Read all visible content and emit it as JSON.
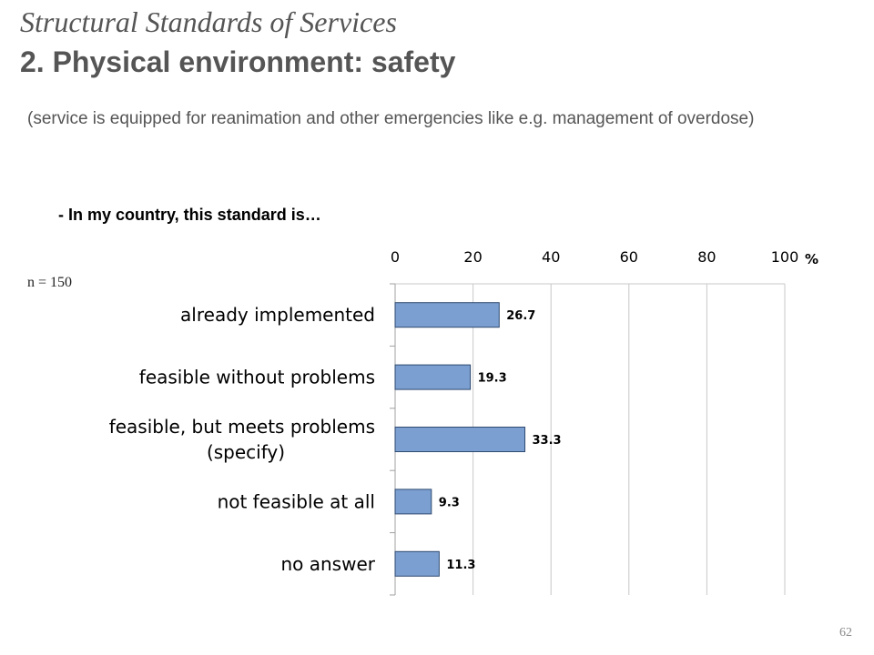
{
  "slide": {
    "title_line1": "Structural Standards of Services",
    "title_line2": "2. Physical environment: safety",
    "subtitle": "(service is equipped for reanimation and other emergencies like e.g. management of overdose)",
    "question": "- In my country, this standard is…",
    "sample_size": "n = 150",
    "page_number": "62"
  },
  "colors": {
    "bar_fill": "#7b9fd0",
    "bar_stroke": "#2f4a70",
    "grid": "#c8c8c8",
    "axis": "#a0a0a0",
    "title_text": "#555555"
  },
  "chart_data": {
    "type": "bar",
    "orientation": "horizontal",
    "categories": [
      [
        "already implemented"
      ],
      [
        "feasible without problems"
      ],
      [
        "feasible, but meets problems",
        "(specify)"
      ],
      [
        "not feasible at all"
      ],
      [
        "no answer"
      ]
    ],
    "values": [
      26.7,
      19.3,
      33.3,
      9.3,
      11.3
    ],
    "value_labels": [
      "26.7",
      "19.3",
      "33.3",
      "9.3",
      "11.3"
    ],
    "xlim": [
      0,
      100
    ],
    "x_ticks": [
      0,
      20,
      40,
      60,
      80,
      100
    ],
    "x_unit": "%",
    "x_axis_position": "top",
    "grid": true
  }
}
